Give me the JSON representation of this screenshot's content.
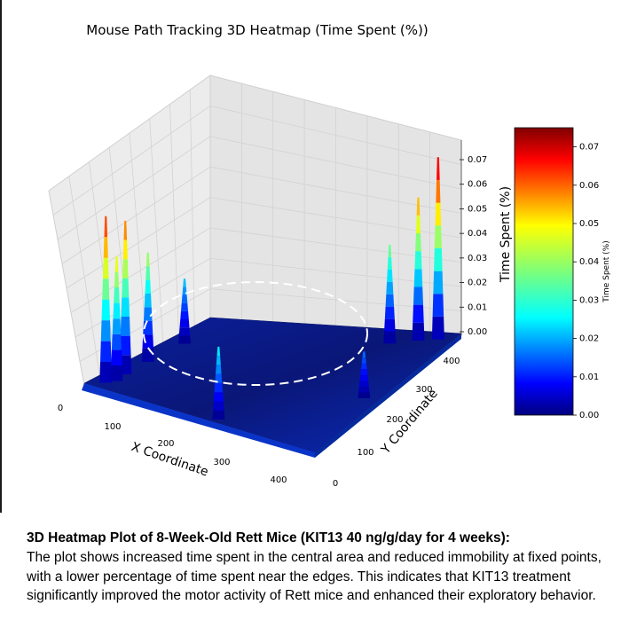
{
  "chart_data": {
    "type": "surface3d-heatmap",
    "title": "Mouse Path Tracking 3D Heatmap (Time Spent (%))",
    "xlabel": "X Coordinate",
    "ylabel": "Y Coordinate",
    "zlabel": "Time Spent (%)",
    "xticks": [
      "0",
      "100",
      "200",
      "300",
      "400"
    ],
    "yticks": [
      "0",
      "100",
      "200",
      "300",
      "400"
    ],
    "zticks": [
      "0.00",
      "0.01",
      "0.02",
      "0.03",
      "0.04",
      "0.05",
      "0.06",
      "0.07"
    ],
    "xlim": [
      0,
      450
    ],
    "ylim": [
      0,
      450
    ],
    "zlim": [
      0,
      0.075
    ],
    "colorbar": {
      "label": "Time Spent (%)",
      "ticks": [
        "0.00",
        "0.01",
        "0.02",
        "0.03",
        "0.04",
        "0.05",
        "0.06",
        "0.07"
      ],
      "colormap": "jet",
      "range": [
        0,
        0.075
      ]
    },
    "annotations": [
      {
        "type": "dashed-ellipse",
        "region": "central-area",
        "color": "#ffffff"
      }
    ],
    "peaks": [
      {
        "x": 40,
        "y": 430,
        "z": 0.064
      },
      {
        "x": 60,
        "y": 420,
        "z": 0.048
      },
      {
        "x": 100,
        "y": 425,
        "z": 0.059
      },
      {
        "x": 180,
        "y": 425,
        "z": 0.042
      },
      {
        "x": 20,
        "y": 200,
        "z": 0.028
      },
      {
        "x": 430,
        "y": 30,
        "z": 0.07
      },
      {
        "x": 420,
        "y": 60,
        "z": 0.055
      },
      {
        "x": 400,
        "y": 100,
        "z": 0.038
      },
      {
        "x": 300,
        "y": 420,
        "z": 0.025
      },
      {
        "x": 200,
        "y": 30,
        "z": 0.018
      }
    ]
  },
  "caption": {
    "title": "3D Heatmap Plot of 8-Week-Old Rett Mice (KIT13 40 ng/g/day for 4 weeks):",
    "body": "The plot shows increased time spent in the central area and reduced immobility at fixed points, with a lower percentage of time spent near the edges. This indicates that KIT13 treatment significantly improved the motor activity of Rett mice and enhanced their exploratory behavior."
  }
}
